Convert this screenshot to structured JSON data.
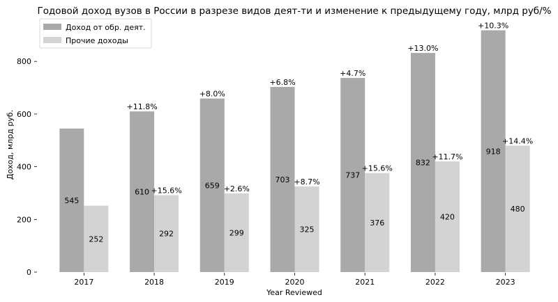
{
  "chart_data": {
    "type": "bar",
    "title": "Годовой доход вузов в России в разрезе видов деят-ти и изменение к предыдущему году, млрд руб/%",
    "xlabel": "Year Reviewed",
    "ylabel": "Доход, млрд руб.",
    "categories": [
      "2017",
      "2018",
      "2019",
      "2020",
      "2021",
      "2022",
      "2023"
    ],
    "ylim": [
      0,
      930
    ],
    "yticks": [
      0,
      200,
      400,
      600,
      800
    ],
    "grid": false,
    "legend_position": "top-left",
    "series": [
      {
        "name": "Доход от обр. деят.",
        "color": "#a9a9a9",
        "values": [
          545,
          610,
          659,
          703,
          737,
          832,
          918
        ],
        "change_labels": [
          "",
          "+11.8%",
          "+8.0%",
          "+6.8%",
          "+4.7%",
          "+13.0%",
          "+10.3%"
        ]
      },
      {
        "name": "Прочие доходы",
        "color": "#d3d3d3",
        "values": [
          252,
          292,
          299,
          325,
          376,
          420,
          480
        ],
        "change_labels": [
          "",
          "+15.6%",
          "+2.6%",
          "+8.7%",
          "+15.6%",
          "+11.7%",
          "+14.4%"
        ]
      }
    ]
  }
}
